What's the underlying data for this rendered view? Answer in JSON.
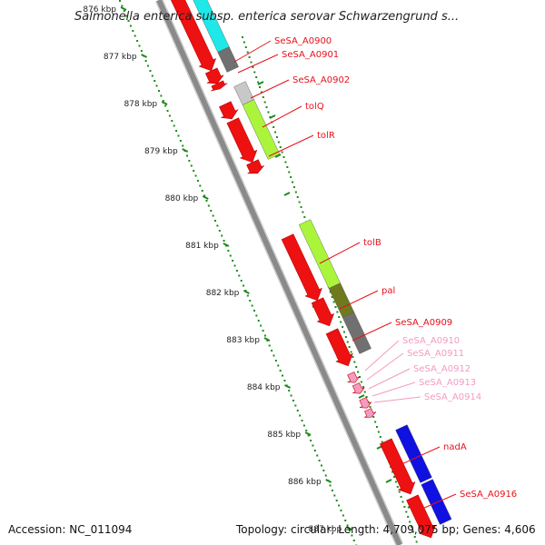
{
  "title": "Salmonella enterica subsp. enterica serovar Schwarzengrund s...",
  "footer": {
    "accession": "Accession: NC_011094",
    "topology": "Topology: circular; Length: 4,709,075 bp; Genes: 4,606"
  },
  "scale_labels": [
    "876 kbp",
    "877 kbp",
    "878 kbp",
    "879 kbp",
    "880 kbp",
    "881 kbp",
    "882 kbp",
    "883 kbp",
    "884 kbp",
    "885 kbp",
    "886 kbp",
    "887 kbp"
  ],
  "gene_labels": [
    {
      "text": "SeSA_A0900",
      "color": "#e8101a"
    },
    {
      "text": "SeSA_A0901",
      "color": "#e8101a"
    },
    {
      "text": "SeSA_A0902",
      "color": "#e8101a"
    },
    {
      "text": "tolQ",
      "color": "#e8101a"
    },
    {
      "text": "tolR",
      "color": "#e8101a"
    },
    {
      "text": "tolB",
      "color": "#e8101a"
    },
    {
      "text": "pal",
      "color": "#e8101a"
    },
    {
      "text": "SeSA_A0909",
      "color": "#e8101a"
    },
    {
      "text": "SeSA_A0910",
      "color": "#f49ac0"
    },
    {
      "text": "SeSA_A0911",
      "color": "#f49ac0"
    },
    {
      "text": "SeSA_A0912",
      "color": "#f49ac0"
    },
    {
      "text": "SeSA_A0913",
      "color": "#f49ac0"
    },
    {
      "text": "SeSA_A0914",
      "color": "#f49ac0"
    },
    {
      "text": "nadA",
      "color": "#e8101a"
    },
    {
      "text": "SeSA_A0916",
      "color": "#e8101a"
    }
  ],
  "colors": {
    "backbone": "#8a8a8a",
    "cds_red": "#ee1111",
    "trna_pink": "#f79ac2",
    "tick_green": "#1a8a1a",
    "cog_cyan": "#1ee8e8",
    "cog_gray": "#707070",
    "cog_lightgray": "#c8c8c8",
    "cog_lime": "#aaf53c",
    "cog_olive": "#6f7a1f",
    "cog_blue": "#1010e0"
  }
}
